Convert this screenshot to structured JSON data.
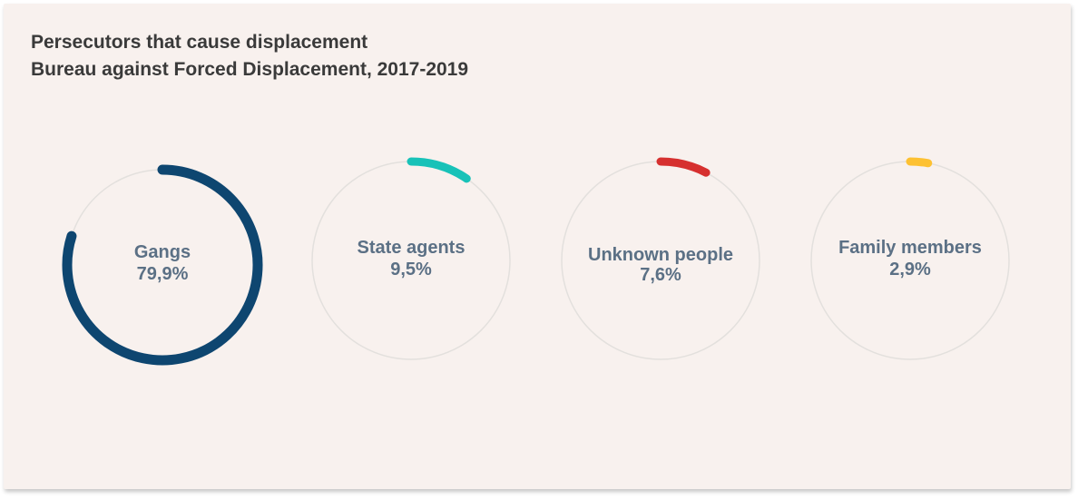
{
  "chart_data": {
    "type": "pie",
    "title": "Persecutors that cause displacement",
    "subtitle": "Bureau against Forced Displacement, 2017-2019",
    "categories": [
      "Gangs",
      "State agents",
      "Unknown people",
      "Family members"
    ],
    "values": [
      79.9,
      9.5,
      7.6,
      2.9
    ],
    "value_labels": [
      "79,9%",
      "9,5%",
      "7,6%",
      "2,9%"
    ],
    "colors": [
      "#0e4670",
      "#18c2b8",
      "#d6302f",
      "#fdc132"
    ],
    "track_color": "#e3e0dd",
    "label_color": "#5b7085"
  }
}
